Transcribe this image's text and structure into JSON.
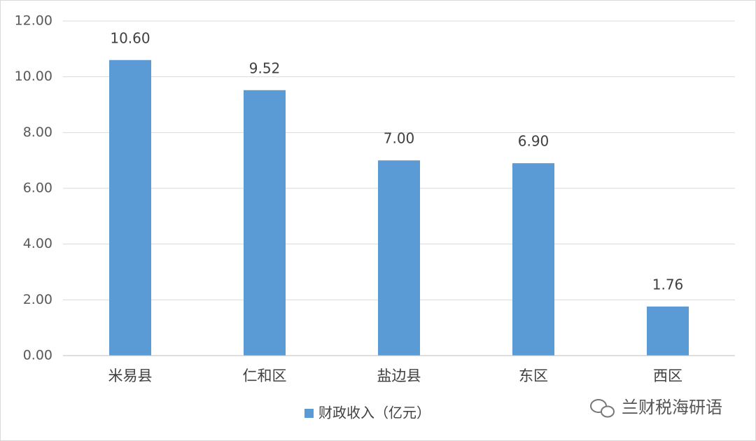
{
  "chart_data": {
    "type": "bar",
    "categories": [
      "米易县",
      "仁和区",
      "盐边县",
      "东区",
      "西区"
    ],
    "series": [
      {
        "name": "财政收入（亿元）",
        "color": "#5b9bd5",
        "values": [
          10.6,
          9.52,
          7.0,
          6.9,
          1.76
        ],
        "value_labels": [
          "10.60",
          "9.52",
          "7.00",
          "6.90",
          "1.76"
        ]
      }
    ],
    "ylim": [
      0,
      12
    ],
    "yticks": [
      {
        "value": 0,
        "label": "0.00"
      },
      {
        "value": 2,
        "label": "2.00"
      },
      {
        "value": 4,
        "label": "4.00"
      },
      {
        "value": 6,
        "label": "6.00"
      },
      {
        "value": 8,
        "label": "8.00"
      },
      {
        "value": 10,
        "label": "10.00"
      },
      {
        "value": 12,
        "label": "12.00"
      }
    ],
    "grid": true,
    "legend": "bottom",
    "watermark": "兰财税海研语"
  }
}
